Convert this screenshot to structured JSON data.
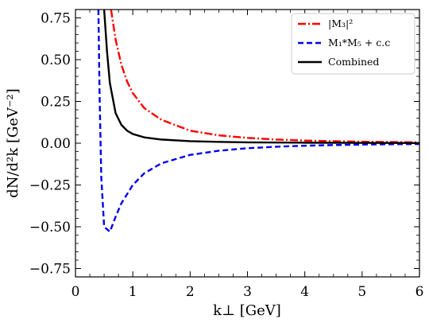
{
  "chart_data": {
    "type": "line",
    "title": "",
    "xlabel": "k⊥ [GeV]",
    "ylabel": "dN/d²k [GeV⁻²]",
    "xlim": [
      0,
      6
    ],
    "ylim": [
      -0.8,
      0.8
    ],
    "x_ticks": [
      0,
      1,
      2,
      3,
      4,
      5,
      6
    ],
    "x_tick_labels": [
      "0",
      "1",
      "2",
      "3",
      "4",
      "5",
      "6"
    ],
    "y_ticks": [
      -0.75,
      -0.5,
      -0.25,
      0.0,
      0.25,
      0.5,
      0.75
    ],
    "y_tick_labels": [
      "−0.75",
      "−0.50",
      "−0.25",
      "0.00",
      "0.25",
      "0.50",
      "0.75"
    ],
    "grid": false,
    "legend_position": "top-right",
    "series": [
      {
        "name": "|M₃|²",
        "color": "#ff0000",
        "dash": "dashdot",
        "x": [
          0.62,
          0.7,
          0.8,
          0.9,
          1.0,
          1.2,
          1.5,
          2.0,
          2.5,
          3.0,
          3.5,
          4.0,
          4.5,
          5.0,
          5.5,
          6.0
        ],
        "y": [
          0.8,
          0.62,
          0.47,
          0.37,
          0.3,
          0.21,
          0.14,
          0.075,
          0.047,
          0.032,
          0.022,
          0.016,
          0.012,
          0.009,
          0.007,
          0.005
        ]
      },
      {
        "name": "M₁*M₅ + c.c",
        "color": "#0000ee",
        "dash": "dashed",
        "x": [
          0.4,
          0.42,
          0.45,
          0.5,
          0.6,
          0.7,
          0.8,
          1.0,
          1.2,
          1.5,
          2.0,
          2.5,
          3.0,
          3.5,
          4.0,
          4.5,
          5.0,
          5.5,
          6.0
        ],
        "y": [
          0.8,
          0.3,
          -0.2,
          -0.5,
          -0.53,
          -0.44,
          -0.36,
          -0.25,
          -0.18,
          -0.12,
          -0.07,
          -0.045,
          -0.03,
          -0.021,
          -0.015,
          -0.011,
          -0.008,
          -0.006,
          -0.005
        ]
      },
      {
        "name": "Combined",
        "color": "#000000",
        "dash": "solid",
        "x": [
          0.5,
          0.55,
          0.6,
          0.7,
          0.8,
          0.9,
          1.0,
          1.2,
          1.5,
          2.0,
          2.5,
          3.0,
          4.0,
          5.0,
          6.0
        ],
        "y": [
          0.8,
          0.55,
          0.36,
          0.18,
          0.11,
          0.075,
          0.055,
          0.035,
          0.022,
          0.012,
          0.008,
          0.005,
          0.003,
          0.002,
          0.001
        ]
      }
    ]
  }
}
